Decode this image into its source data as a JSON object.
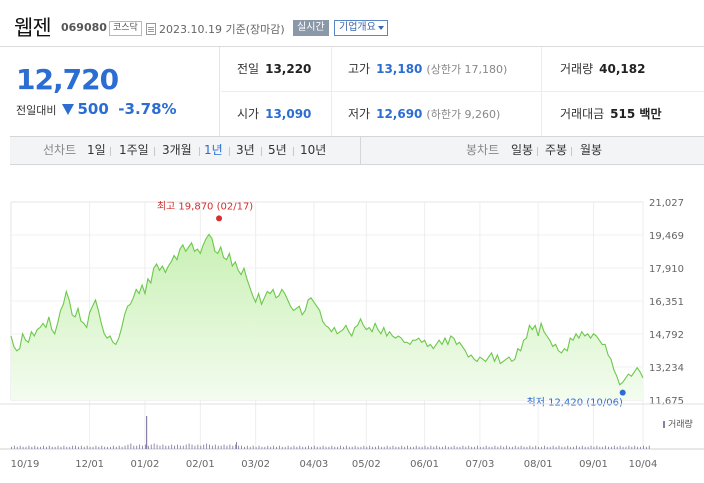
{
  "header": {
    "name": "웹젠",
    "code": "069080",
    "market": "코스닥",
    "date_text": "2023.10.19 기준(장마감)",
    "realtime_label": "실시간",
    "company_label": "기업개요"
  },
  "price": {
    "current": "12,720",
    "change_label": "전일대비",
    "change_amount": "500",
    "change_rate": "-3.78%",
    "direction": "down"
  },
  "quotes": {
    "prev_close": {
      "label": "전일",
      "value": "13,220"
    },
    "high": {
      "label": "고가",
      "value": "13,180",
      "sub": "(상한가 17,180)"
    },
    "volume": {
      "label": "거래량",
      "value": "40,182"
    },
    "open": {
      "label": "시가",
      "value": "13,090"
    },
    "low": {
      "label": "저가",
      "value": "12,690",
      "sub": "(하한가 9,260)"
    },
    "amount": {
      "label": "거래대금",
      "value": "515 백만"
    }
  },
  "period_bar": {
    "line_label": "선차트",
    "line_items": [
      "1일",
      "1주일",
      "3개월",
      "1년",
      "3년",
      "5년",
      "10년"
    ],
    "active": "1년",
    "candle_label": "봉차트",
    "candle_items": [
      "일봉",
      "주봉",
      "월봉"
    ]
  },
  "colors": {
    "accent_blue": "#2b6dd3",
    "up_red": "#d32f2f",
    "line_green": "#6bc94a",
    "area_top": "#c9f0b4",
    "area_bottom": "#f3fcef",
    "volume": "#8a7fa6"
  },
  "chart_data": {
    "type": "area",
    "x_tick_labels": [
      "10/19",
      "12/01",
      "01/02",
      "02/01",
      "03/02",
      "04/03",
      "05/02",
      "06/01",
      "07/03",
      "08/01",
      "09/01",
      "10/04"
    ],
    "y_tick_labels": [
      "21,027",
      "19,469",
      "17,910",
      "16,351",
      "14,792",
      "13,234",
      "11,675"
    ],
    "ylim": [
      11675,
      21027
    ],
    "high_label": "최고 19,870 (02/17)",
    "low_label": "최저 12,420 (10/06)",
    "volume_label": "거래량",
    "series": [
      {
        "values": [
          14700,
          14200,
          14000,
          14100,
          14800,
          14500,
          14400,
          14900,
          14700,
          15000,
          15100,
          15300,
          15100,
          15600,
          15000,
          14800,
          15300,
          15900,
          16200,
          16800,
          16400,
          15700,
          15600,
          16000,
          15400,
          15300,
          15100,
          15800,
          16100,
          16400,
          15900,
          15300,
          14800,
          14600,
          14700,
          14400,
          14300,
          14600,
          15100,
          15700,
          16100,
          16200,
          16500,
          16900,
          16700,
          17100,
          16700,
          17400,
          17200,
          17900,
          18100,
          17800,
          18000,
          17700,
          18000,
          18200,
          18500,
          18300,
          18800,
          19000,
          18700,
          18900,
          19100,
          18700,
          18800,
          18600,
          19000,
          19300,
          19500,
          19300,
          18700,
          18600,
          18900,
          18400,
          18300,
          18600,
          18000,
          18200,
          17800,
          17600,
          17900,
          17400,
          17000,
          16600,
          16300,
          16700,
          16200,
          16500,
          16800,
          16700,
          16900,
          16500,
          16600,
          16900,
          16700,
          16400,
          16100,
          15900,
          16000,
          16100,
          15700,
          15900,
          16400,
          16500,
          16300,
          16100,
          15900,
          15400,
          15200,
          15100,
          14900,
          15100,
          14800,
          14900,
          15000,
          15200,
          14900,
          14700,
          15100,
          15200,
          15500,
          15200,
          15000,
          15100,
          14900,
          15300,
          15000,
          14800,
          15100,
          14700,
          14900,
          14700,
          14600,
          14700,
          14600,
          14400,
          14400,
          14300,
          14500,
          14500,
          14600,
          14400,
          14500,
          14200,
          14300,
          14100,
          14300,
          14500,
          14300,
          14600,
          14300,
          14700,
          14600,
          14300,
          14400,
          14200,
          14000,
          13700,
          13800,
          13600,
          13500,
          13700,
          13600,
          13500,
          13700,
          13900,
          13500,
          13800,
          13400,
          13500,
          13600,
          13700,
          13500,
          13600,
          14100,
          14000,
          14500,
          14600,
          15200,
          15000,
          15200,
          14700,
          15300,
          14900,
          14700,
          14500,
          14200,
          14300,
          14000,
          13900,
          14100,
          14000,
          14600,
          14500,
          14800,
          14600,
          14900,
          14700,
          14800,
          14600,
          14800,
          14700,
          14500,
          14300,
          14300,
          13800,
          13600,
          13100,
          12800,
          12400,
          12500,
          12700,
          12900,
          12800,
          13000,
          13200,
          13000,
          12720
        ]
      },
      {
        "values": [
          2,
          3,
          2,
          3,
          2,
          2,
          3,
          2,
          3,
          2,
          2,
          3,
          2,
          3,
          2,
          2,
          3,
          2,
          3,
          2,
          2,
          3,
          3,
          2,
          3,
          2,
          3,
          2,
          2,
          3,
          2,
          3,
          2,
          2,
          2,
          3,
          2,
          3,
          2,
          3,
          4,
          5,
          3,
          3,
          4,
          3,
          4,
          3,
          4,
          5,
          4,
          3,
          4,
          3,
          3,
          4,
          3,
          4,
          3,
          3,
          4,
          5,
          4,
          3,
          4,
          3,
          4,
          5,
          4,
          3,
          4,
          3,
          3,
          4,
          3,
          4,
          3,
          4,
          3,
          3,
          2,
          3,
          2,
          3,
          2,
          3,
          2,
          2,
          3,
          2,
          3,
          2,
          3,
          2,
          2,
          3,
          2,
          3,
          2,
          3,
          2,
          2,
          3,
          2,
          3,
          2,
          2,
          3,
          2,
          2,
          3,
          2,
          2,
          3,
          2,
          3,
          2,
          2,
          3,
          2,
          2,
          3,
          2,
          3,
          2,
          2,
          3,
          2,
          2,
          3,
          2,
          3,
          2,
          2,
          3,
          2,
          3,
          2,
          2,
          3,
          2,
          2,
          3,
          2,
          3,
          2,
          3,
          2,
          2,
          3,
          2,
          2,
          3,
          2,
          2,
          3,
          2,
          3,
          2,
          2,
          3,
          2,
          2,
          3,
          2,
          2,
          3,
          2,
          3,
          2,
          3,
          2,
          2,
          3,
          2,
          3,
          2,
          2,
          3,
          2,
          3,
          2,
          2,
          3,
          2,
          2,
          3,
          2,
          3,
          2,
          2,
          3,
          2,
          2,
          3,
          2,
          3,
          2,
          2,
          3,
          2,
          3,
          2,
          2,
          3,
          2,
          2,
          3,
          2,
          3,
          2,
          2,
          3,
          2,
          3,
          2,
          2,
          3,
          2,
          3
        ]
      }
    ]
  }
}
